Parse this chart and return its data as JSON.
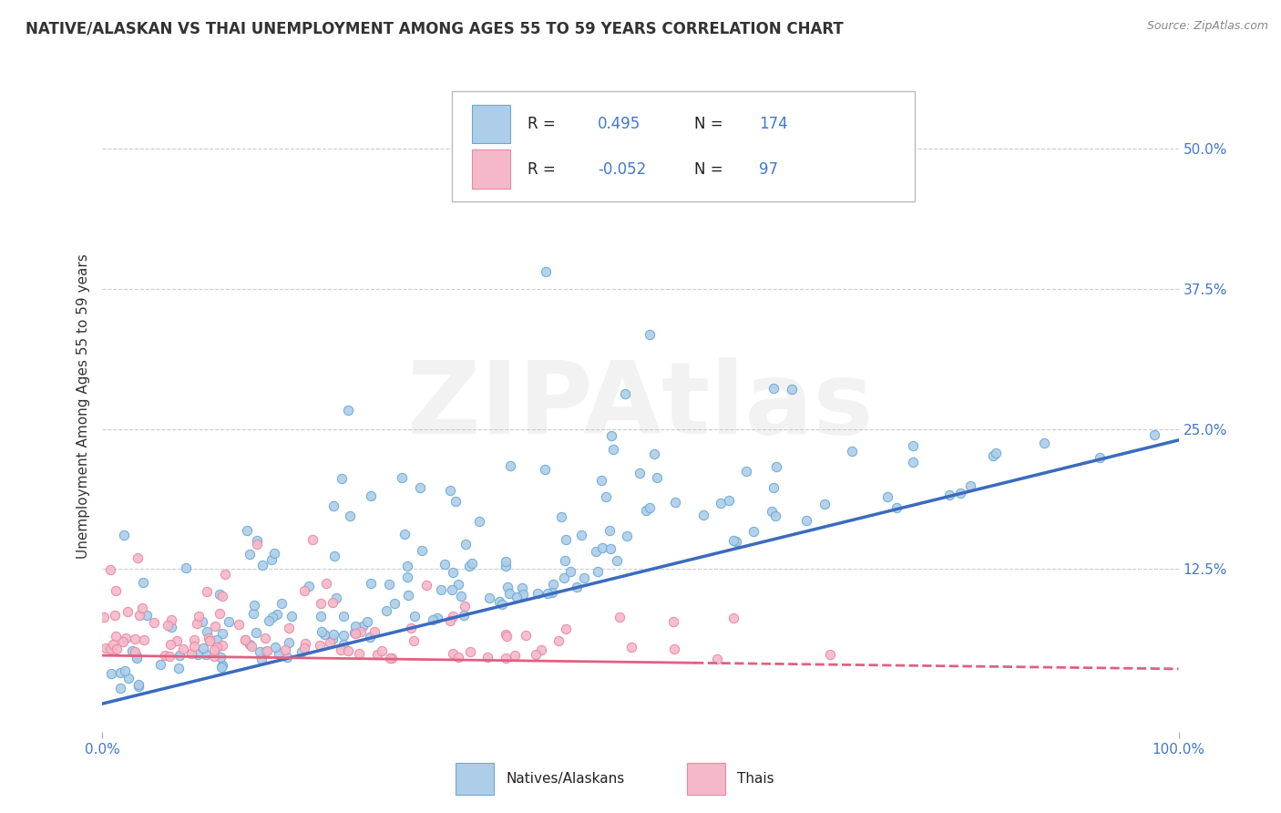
{
  "title": "NATIVE/ALASKAN VS THAI UNEMPLOYMENT AMONG AGES 55 TO 59 YEARS CORRELATION CHART",
  "source": "Source: ZipAtlas.com",
  "ylabel": "Unemployment Among Ages 55 to 59 years",
  "xlim": [
    0.0,
    1.0
  ],
  "ylim": [
    -0.02,
    0.56
  ],
  "xtick_labels": [
    "0.0%",
    "100.0%"
  ],
  "xtick_positions": [
    0.0,
    1.0
  ],
  "ytick_labels": [
    "12.5%",
    "25.0%",
    "37.5%",
    "50.0%"
  ],
  "ytick_positions": [
    0.125,
    0.25,
    0.375,
    0.5
  ],
  "native_color": "#aecde8",
  "native_edge_color": "#6aaad4",
  "thai_color": "#f4b8c8",
  "thai_edge_color": "#e888a8",
  "native_line_color": "#3b6bbf",
  "thai_line_color": "#e06080",
  "native_R": 0.495,
  "native_N": 174,
  "thai_R": -0.052,
  "thai_N": 97,
  "legend_label_native": "Natives/Alaskans",
  "legend_label_thai": "Thais",
  "background_color": "#ffffff",
  "grid_color": "#cccccc",
  "watermark": "ZIPAtlas",
  "title_color": "#333333",
  "source_color": "#888888",
  "legend_box_color": "#ffffff",
  "legend_border_color": "#cccccc",
  "native_seed": 42,
  "thai_seed": 7,
  "native_n": 174,
  "thai_n": 97,
  "native_slope": 0.235,
  "native_intercept": 0.005,
  "thai_slope": -0.012,
  "thai_intercept": 0.048,
  "marker_size": 55,
  "marker_linewidth": 0.8,
  "title_fontsize": 12,
  "axis_fontsize": 11,
  "tick_fontsize": 11,
  "legend_fontsize": 12,
  "label_color": "#4477cc"
}
